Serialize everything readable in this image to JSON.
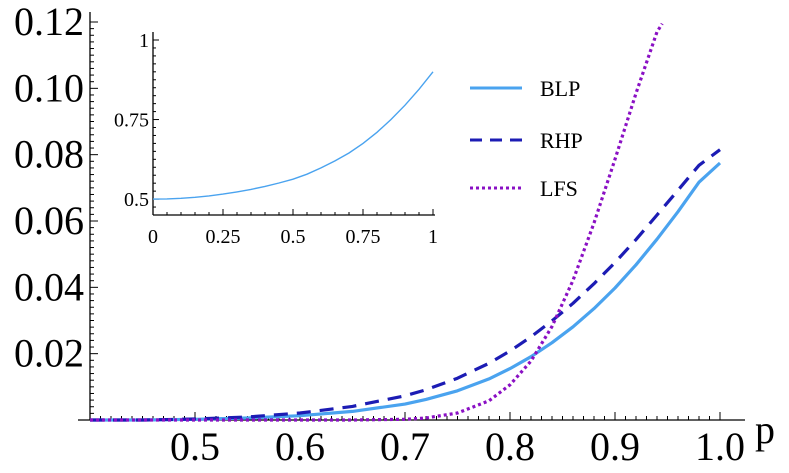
{
  "chart_data": [
    {
      "type": "line",
      "title": "",
      "xlabel": "p",
      "ylabel": "",
      "xlim": [
        0.4,
        1.0
      ],
      "ylim": [
        0,
        0.12
      ],
      "x_ticks": [
        "0.5",
        "0.6",
        "0.7",
        "0.8",
        "0.9",
        "1.0"
      ],
      "y_ticks": [
        "0.02",
        "0.04",
        "0.06",
        "0.08",
        "0.10",
        "0.12"
      ],
      "legend": [
        "BLP",
        "RHP",
        "LFS"
      ],
      "series": [
        {
          "name": "BLP",
          "style": "solid",
          "color": "#4aa3ef",
          "x": [
            0.4,
            0.45,
            0.5,
            0.55,
            0.6,
            0.65,
            0.7,
            0.72,
            0.75,
            0.78,
            0.8,
            0.82,
            0.84,
            0.86,
            0.88,
            0.9,
            0.92,
            0.94,
            0.96,
            0.98,
            1.0
          ],
          "y": [
            0.0,
            0.0,
            0.0002,
            0.0006,
            0.0013,
            0.0026,
            0.0048,
            0.0062,
            0.0088,
            0.0124,
            0.0155,
            0.0191,
            0.0233,
            0.0281,
            0.0336,
            0.0398,
            0.0468,
            0.0545,
            0.0628,
            0.0717,
            0.0775
          ]
        },
        {
          "name": "RHP",
          "style": "dashed",
          "color": "#1c1cb4",
          "x": [
            0.4,
            0.45,
            0.5,
            0.55,
            0.6,
            0.65,
            0.7,
            0.72,
            0.75,
            0.78,
            0.8,
            0.82,
            0.84,
            0.86,
            0.88,
            0.9,
            0.92,
            0.94,
            0.96,
            0.98,
            1.0
          ],
          "y": [
            0.0,
            0.0,
            0.0003,
            0.0009,
            0.0021,
            0.0041,
            0.0073,
            0.0091,
            0.0126,
            0.0171,
            0.0208,
            0.0251,
            0.0299,
            0.0352,
            0.0411,
            0.0475,
            0.0544,
            0.0618,
            0.0693,
            0.0768,
            0.0815
          ]
        },
        {
          "name": "LFS",
          "style": "dotted",
          "color": "#8a10c4",
          "x": [
            0.4,
            0.5,
            0.6,
            0.65,
            0.7,
            0.72,
            0.75,
            0.78,
            0.8,
            0.82,
            0.84,
            0.86,
            0.88,
            0.9,
            0.92,
            0.94,
            0.945
          ],
          "y": [
            0.0,
            0.0,
            0.0,
            0.0,
            0.0002,
            0.0006,
            0.0021,
            0.0058,
            0.0106,
            0.0178,
            0.0282,
            0.0421,
            0.0594,
            0.0786,
            0.0985,
            0.117,
            0.1195
          ]
        }
      ]
    },
    {
      "type": "line",
      "title": "",
      "xlabel": "",
      "ylabel": "",
      "xlim": [
        0,
        1
      ],
      "ylim": [
        0.45,
        1
      ],
      "x_ticks": [
        "0",
        "0.25",
        "0.5",
        "0.75",
        "1"
      ],
      "y_ticks": [
        "0.5",
        "0.75",
        "1"
      ],
      "series": [
        {
          "name": "inset",
          "color": "#4aa3ef",
          "x": [
            0,
            0.05,
            0.1,
            0.15,
            0.2,
            0.25,
            0.3,
            0.35,
            0.4,
            0.45,
            0.5,
            0.55,
            0.6,
            0.65,
            0.7,
            0.75,
            0.8,
            0.85,
            0.9,
            0.95,
            1.0
          ],
          "y": [
            0.5,
            0.5006,
            0.5025,
            0.5056,
            0.51,
            0.5156,
            0.5225,
            0.5306,
            0.54,
            0.5506,
            0.5625,
            0.5783,
            0.598,
            0.62,
            0.645,
            0.675,
            0.71,
            0.75,
            0.795,
            0.845,
            0.9
          ]
        }
      ]
    }
  ]
}
